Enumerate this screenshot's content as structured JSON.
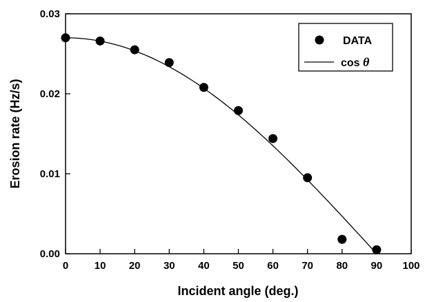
{
  "chart_data": {
    "type": "scatter",
    "xlabel": "Incident angle (deg.)",
    "ylabel": "Erosion rate (Hz/s)",
    "xlim": [
      0,
      100
    ],
    "ylim": [
      0,
      0.03
    ],
    "x_ticks": [
      "0",
      "10",
      "20",
      "30",
      "40",
      "50",
      "60",
      "70",
      "80",
      "90",
      "100"
    ],
    "y_ticks": [
      "0.00",
      "0.01",
      "0.02",
      "0.03"
    ],
    "grid": false,
    "legend_position": "top-right",
    "series": [
      {
        "name": "DATA",
        "kind": "points",
        "x": [
          0,
          10,
          20,
          30,
          40,
          50,
          60,
          70,
          80,
          90
        ],
        "y": [
          0.027,
          0.0266,
          0.0255,
          0.0239,
          0.0208,
          0.0179,
          0.0144,
          0.0095,
          0.0018,
          0.0005
        ]
      },
      {
        "name_prefix": "cos ",
        "name_symbol": "θ",
        "kind": "line",
        "function": "cos",
        "amplitude": 0.027,
        "x_range": [
          0,
          90
        ]
      }
    ]
  }
}
